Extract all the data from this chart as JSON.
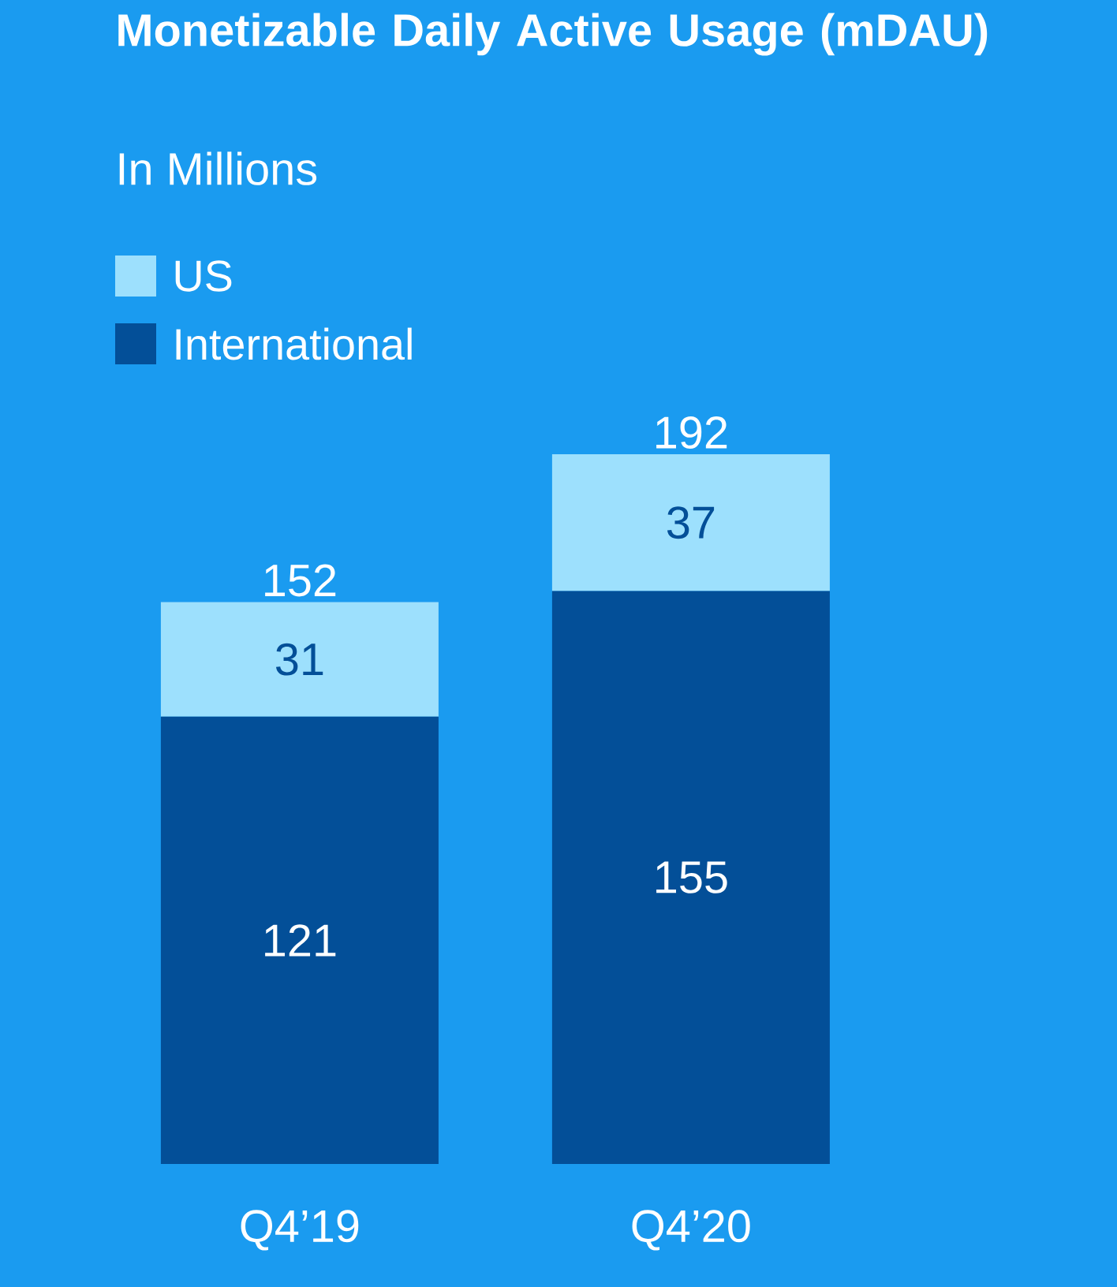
{
  "chart_data": {
    "type": "bar",
    "stacked": true,
    "title": "Monetizable Daily Active Usage (mDAU)",
    "subtitle": "In Millions",
    "categories": [
      "Q4’19",
      "Q4’20"
    ],
    "series": [
      {
        "name": "International",
        "color": "#034f98",
        "values": [
          121,
          155
        ]
      },
      {
        "name": "US",
        "color": "#9de0fd",
        "values": [
          31,
          37
        ]
      }
    ],
    "totals": [
      "152",
      "192"
    ],
    "data_labels": true,
    "legend": "top left"
  }
}
